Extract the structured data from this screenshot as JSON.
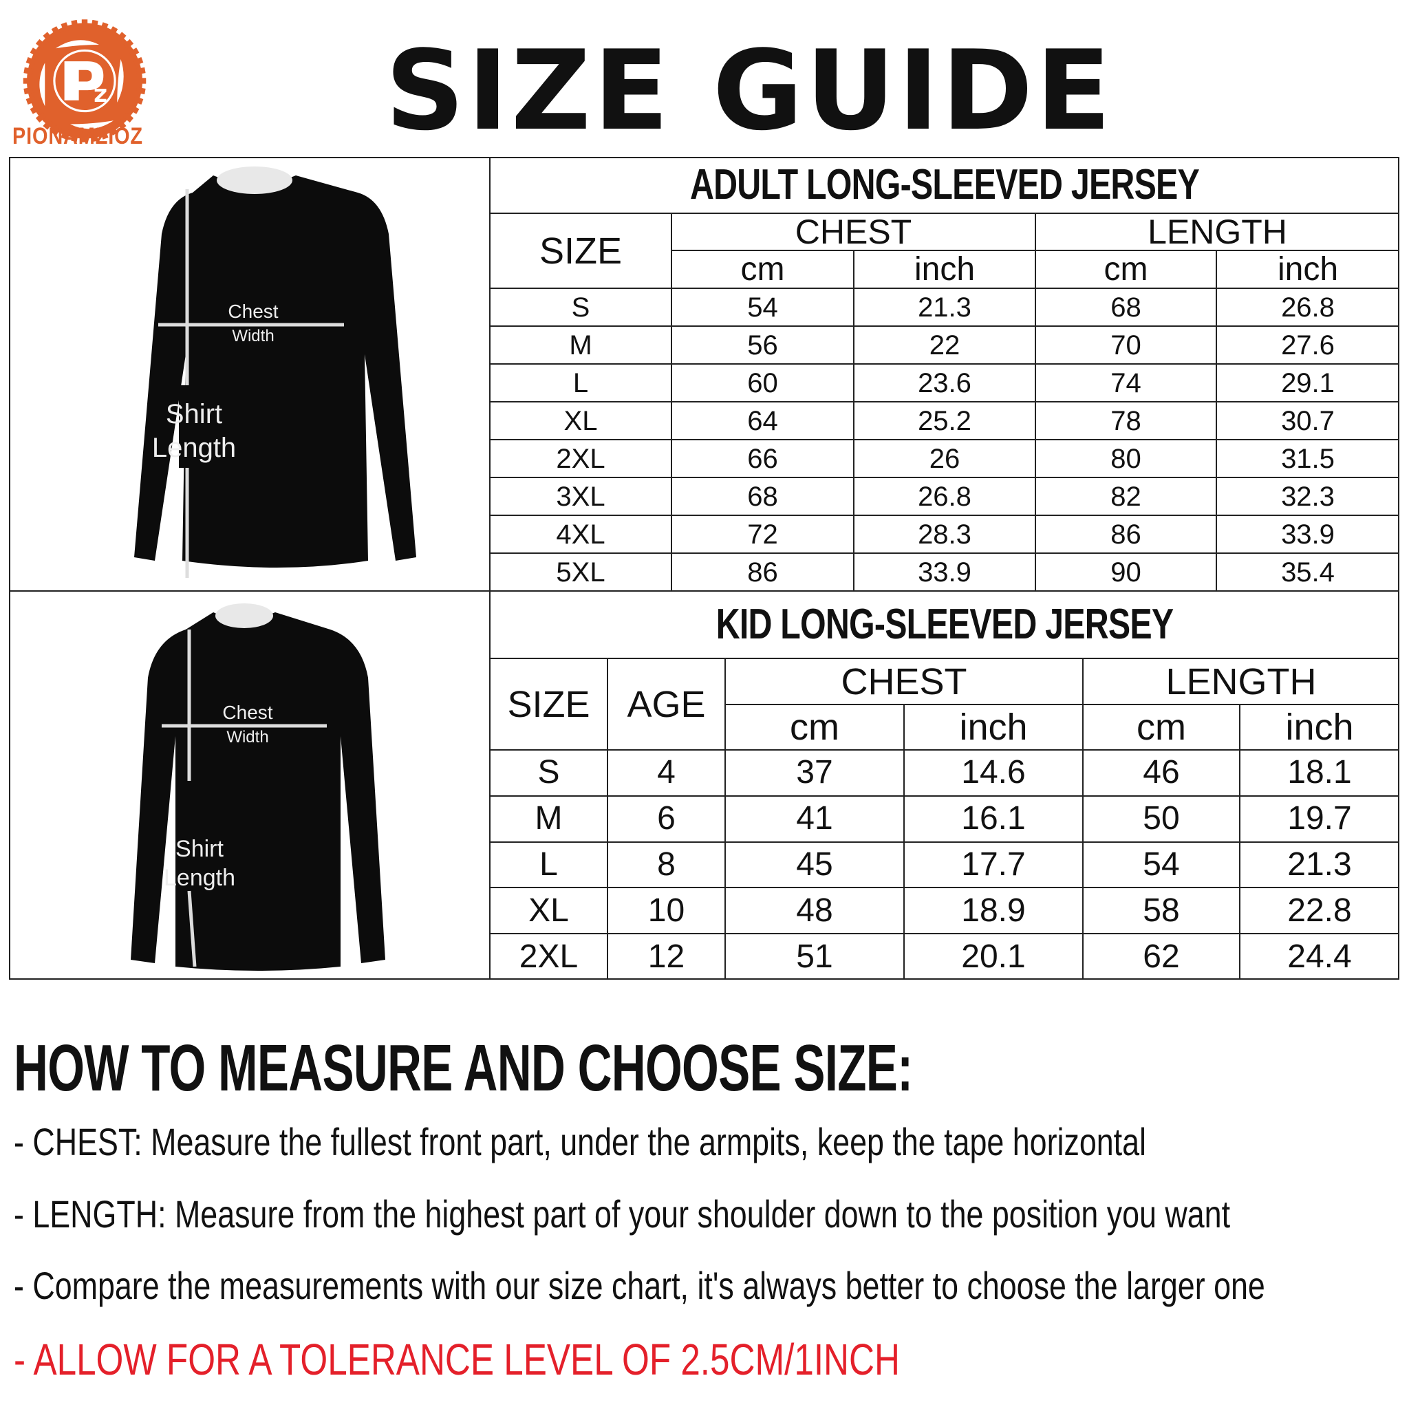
{
  "brand": {
    "name": "PIONAMZIOZ",
    "monogram": "Pz",
    "color": "#e0612c"
  },
  "title": "SIZE GUIDE",
  "adult": {
    "title": "ADULT LONG-SLEEVED JERSEY",
    "headers": {
      "size": "SIZE",
      "chest": "CHEST",
      "length": "LENGTH",
      "cm": "cm",
      "inch": "inch"
    },
    "rows": [
      [
        "S",
        "54",
        "21.3",
        "68",
        "26.8"
      ],
      [
        "M",
        "56",
        "22",
        "70",
        "27.6"
      ],
      [
        "L",
        "60",
        "23.6",
        "74",
        "29.1"
      ],
      [
        "XL",
        "64",
        "25.2",
        "78",
        "30.7"
      ],
      [
        "2XL",
        "66",
        "26",
        "80",
        "31.5"
      ],
      [
        "3XL",
        "68",
        "26.8",
        "82",
        "32.3"
      ],
      [
        "4XL",
        "72",
        "28.3",
        "86",
        "33.9"
      ],
      [
        "5XL",
        "86",
        "33.9",
        "90",
        "35.4"
      ]
    ],
    "diagram": {
      "chest_label_1": "Chest",
      "chest_label_2": "Width",
      "length_label_1": "Shirt",
      "length_label_2": "Length"
    }
  },
  "kid": {
    "title": "KID LONG-SLEEVED JERSEY",
    "headers": {
      "size": "SIZE",
      "age": "AGE",
      "chest": "CHEST",
      "length": "LENGTH",
      "cm": "cm",
      "inch": "inch"
    },
    "rows": [
      [
        "S",
        "4",
        "37",
        "14.6",
        "46",
        "18.1"
      ],
      [
        "M",
        "6",
        "41",
        "16.1",
        "50",
        "19.7"
      ],
      [
        "L",
        "8",
        "45",
        "17.7",
        "54",
        "21.3"
      ],
      [
        "XL",
        "10",
        "48",
        "18.9",
        "58",
        "22.8"
      ],
      [
        "2XL",
        "12",
        "51",
        "20.1",
        "62",
        "24.4"
      ]
    ],
    "diagram": {
      "chest_label_1": "Chest",
      "chest_label_2": "Width",
      "length_label_1": "Shirt",
      "length_label_2": "Length"
    }
  },
  "howto": {
    "heading": "HOW TO MEASURE AND CHOOSE SIZE:",
    "chest_label": "- CHEST:",
    "chest_text": "Measure the fullest front part, under the armpits, keep the tape horizontal",
    "length_label": "- LENGTH:",
    "length_text": "Measure from the highest part of your shoulder down to the position you want",
    "compare": "- Compare the measurements with our size chart, it's always better to choose the larger one",
    "tolerance": "- ALLOW FOR A TOLERANCE LEVEL OF 2.5CM/1INCH",
    "tolerance_color": "#e4202a"
  }
}
